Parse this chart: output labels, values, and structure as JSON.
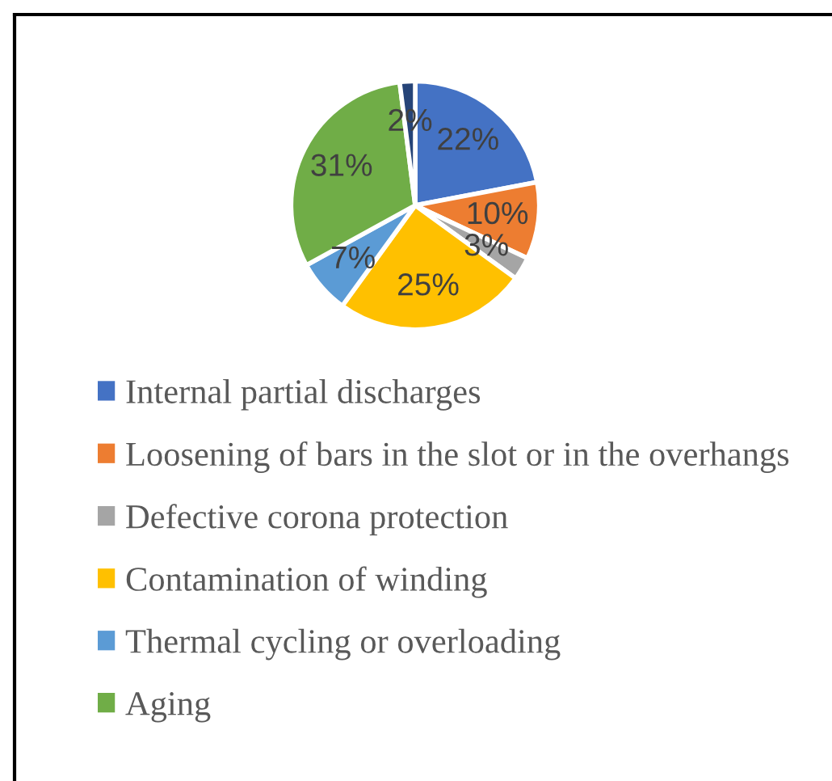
{
  "chart_data": {
    "type": "pie",
    "categories": [
      "Internal partial discharges",
      "Loosening of bars in the slot or in the overhangs",
      "Defective corona protection",
      "Contamination of winding",
      "Thermal cycling or overloading",
      "Aging",
      null
    ],
    "values": [
      22,
      10,
      3,
      25,
      7,
      31,
      2
    ],
    "colors": [
      "#4472c4",
      "#ed7d31",
      "#a5a5a5",
      "#ffc000",
      "#5b9bd5",
      "#70ad47",
      "#264478"
    ],
    "value_labels": [
      "22%",
      "10%",
      "3%",
      "25%",
      "7%",
      "31%",
      "2%"
    ],
    "legend": "bottom"
  }
}
